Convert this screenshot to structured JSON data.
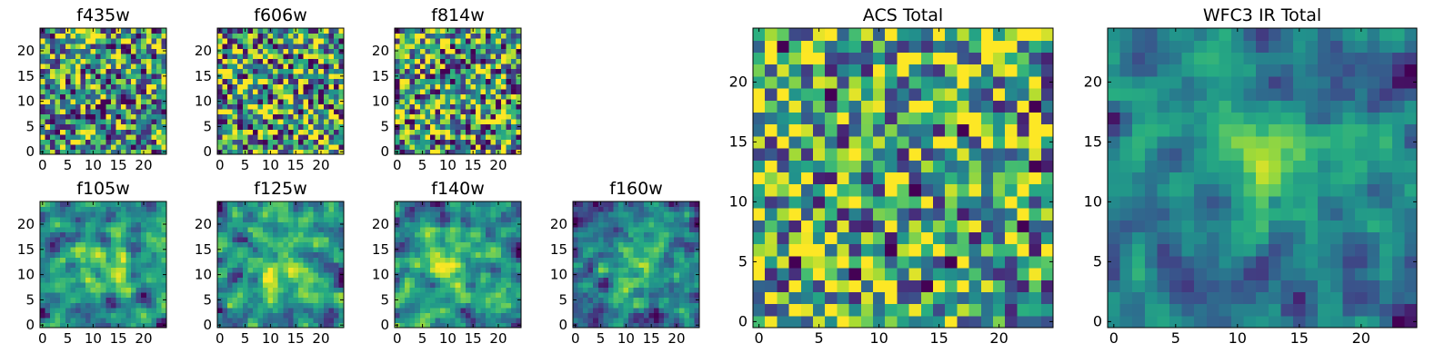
{
  "figure_title": "",
  "colormap": {
    "name": "viridis",
    "stops": [
      "#440154",
      "#472c7a",
      "#3b518b",
      "#2c718e",
      "#21918c",
      "#27ad81",
      "#5cc863",
      "#aadc32",
      "#fde725"
    ]
  },
  "chart_data": [
    {
      "type": "heatmap",
      "title": "f435w",
      "grid_size": 25,
      "xlim": [
        -0.5,
        24.5
      ],
      "ylim": [
        -0.5,
        24.5
      ],
      "xticks": [
        0,
        5,
        10,
        15,
        20
      ],
      "yticks": [
        0,
        5,
        10,
        15,
        20
      ],
      "pattern": "noise",
      "seed": 11,
      "center": [
        12,
        12
      ],
      "sigma": 4,
      "amplitude": 0.0,
      "noise": 0.55,
      "base": 0.55,
      "smooth": 0,
      "colorbar": false
    },
    {
      "type": "heatmap",
      "title": "f606w",
      "grid_size": 25,
      "xlim": [
        -0.5,
        24.5
      ],
      "ylim": [
        -0.5,
        24.5
      ],
      "xticks": [
        0,
        5,
        10,
        15,
        20
      ],
      "yticks": [
        0,
        5,
        10,
        15,
        20
      ],
      "pattern": "noise",
      "seed": 23,
      "center": [
        12,
        12
      ],
      "sigma": 4,
      "amplitude": 0.0,
      "noise": 0.6,
      "base": 0.58,
      "smooth": 0,
      "colorbar": false
    },
    {
      "type": "heatmap",
      "title": "f814w",
      "grid_size": 25,
      "xlim": [
        -0.5,
        24.5
      ],
      "ylim": [
        -0.5,
        24.5
      ],
      "xticks": [
        0,
        5,
        10,
        15,
        20
      ],
      "yticks": [
        0,
        5,
        10,
        15,
        20
      ],
      "pattern": "noise",
      "seed": 37,
      "center": [
        12,
        12
      ],
      "sigma": 4,
      "amplitude": 0.0,
      "noise": 0.6,
      "base": 0.58,
      "smooth": 0,
      "colorbar": false
    },
    {
      "type": "heatmap",
      "title": "f105w",
      "grid_size": 25,
      "xlim": [
        -0.5,
        24.5
      ],
      "ylim": [
        -0.5,
        24.5
      ],
      "xticks": [
        0,
        5,
        10,
        15,
        20
      ],
      "yticks": [
        0,
        5,
        10,
        15,
        20
      ],
      "pattern": "source",
      "seed": 41,
      "center": [
        12,
        12
      ],
      "sigma": 4.5,
      "amplitude": 0.35,
      "noise": 0.4,
      "base": 0.48,
      "smooth": 1,
      "colorbar": false
    },
    {
      "type": "heatmap",
      "title": "f125w",
      "grid_size": 25,
      "xlim": [
        -0.5,
        24.5
      ],
      "ylim": [
        -0.5,
        24.5
      ],
      "xticks": [
        0,
        5,
        10,
        15,
        20
      ],
      "yticks": [
        0,
        5,
        10,
        15,
        20
      ],
      "pattern": "source",
      "seed": 53,
      "center": [
        13,
        12
      ],
      "sigma": 4.5,
      "amplitude": 0.3,
      "noise": 0.4,
      "base": 0.55,
      "smooth": 1,
      "colorbar": false
    },
    {
      "type": "heatmap",
      "title": "f140w",
      "grid_size": 25,
      "xlim": [
        -0.5,
        24.5
      ],
      "ylim": [
        -0.5,
        24.5
      ],
      "xticks": [
        0,
        5,
        10,
        15,
        20
      ],
      "yticks": [
        0,
        5,
        10,
        15,
        20
      ],
      "pattern": "source",
      "seed": 67,
      "center": [
        12,
        12
      ],
      "sigma": 4.5,
      "amplitude": 0.35,
      "noise": 0.4,
      "base": 0.5,
      "smooth": 1,
      "colorbar": false
    },
    {
      "type": "heatmap",
      "title": "f160w",
      "grid_size": 25,
      "xlim": [
        -0.5,
        24.5
      ],
      "ylim": [
        -0.5,
        24.5
      ],
      "xticks": [
        0,
        5,
        10,
        15,
        20
      ],
      "yticks": [
        0,
        5,
        10,
        15,
        20
      ],
      "pattern": "source",
      "seed": 79,
      "center": [
        13,
        12
      ],
      "sigma": 4.0,
      "amplitude": 0.4,
      "noise": 0.42,
      "base": 0.42,
      "smooth": 1,
      "colorbar": false
    },
    {
      "type": "heatmap",
      "title": "ACS Total",
      "grid_size": 25,
      "xlim": [
        -0.5,
        24.5
      ],
      "ylim": [
        -0.5,
        24.5
      ],
      "xticks": [
        0,
        5,
        10,
        15,
        20
      ],
      "yticks": [
        0,
        5,
        10,
        15,
        20
      ],
      "pattern": "noise",
      "seed": 97,
      "center": [
        12,
        12
      ],
      "sigma": 4,
      "amplitude": 0.0,
      "noise": 0.55,
      "base": 0.62,
      "smooth": 0,
      "colorbar": false
    },
    {
      "type": "heatmap",
      "title": "WFC3 IR Total",
      "grid_size": 25,
      "xlim": [
        -0.5,
        24.5
      ],
      "ylim": [
        -0.5,
        24.5
      ],
      "xticks": [
        0,
        5,
        10,
        15,
        20
      ],
      "yticks": [
        0,
        5,
        10,
        15,
        20
      ],
      "pattern": "source",
      "seed": 113,
      "center": [
        13,
        13
      ],
      "sigma": 4.0,
      "amplitude": 0.45,
      "noise": 0.3,
      "base": 0.42,
      "smooth": 1,
      "colorbar": false
    }
  ]
}
